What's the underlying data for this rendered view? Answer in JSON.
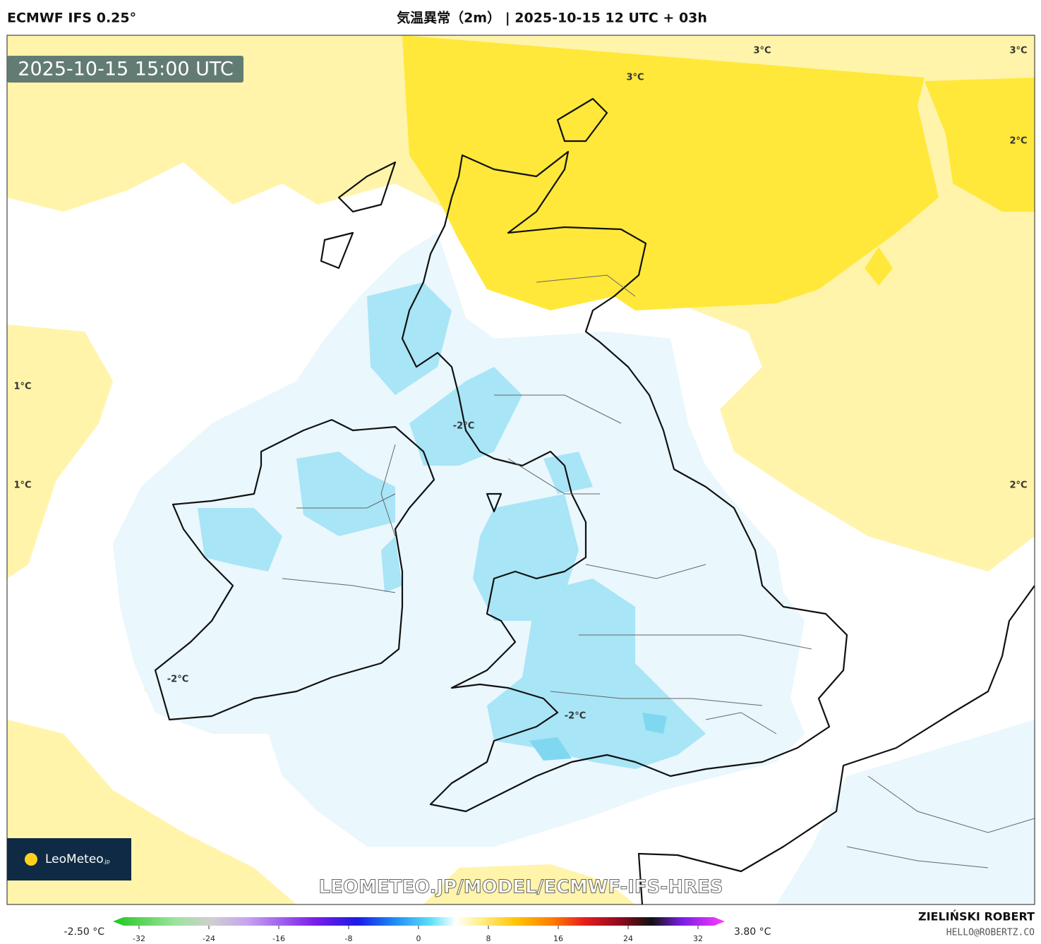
{
  "header": {
    "model": "ECMWF IFS 0.25°",
    "title": "気温異常（2m） | 2025-10-15 12 UTC + 03h"
  },
  "map": {
    "valid_time": "2025-10-15 15:00 UTC",
    "contour_labels": [
      "3°C",
      "3°C",
      "3°C",
      "2°C",
      "1°C",
      "1°C",
      "2°C",
      "-2°C",
      "-2°C",
      "-2°C"
    ],
    "watermark": "LEOMETEO.JP/MODEL/ECMWF-IFS-HRES"
  },
  "logo": {
    "name": "LeoMeteo",
    "suffix": ".jp"
  },
  "colorbar": {
    "min_label": "-2.50 °C",
    "max_label": "3.80 °C",
    "ticks": [
      -32,
      -24,
      -16,
      -8,
      0,
      8,
      16,
      24,
      32
    ]
  },
  "credits": {
    "author": "ZIELIŃSKI ROBERT",
    "email": "HELLO@ROBERTZ.CO"
  }
}
